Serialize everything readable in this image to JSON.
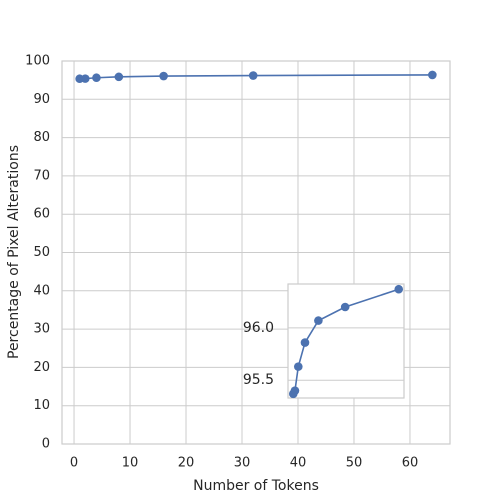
{
  "chart_data": {
    "type": "line",
    "xlabel": "Number of Tokens",
    "ylabel": "Percentage of Pixel Alterations",
    "x": [
      1,
      2,
      4,
      8,
      16,
      32,
      64
    ],
    "series": [
      {
        "color": "#4c72b0",
        "values": [
          95.37,
          95.4,
          95.63,
          95.86,
          96.07,
          96.2,
          96.37
        ]
      }
    ],
    "xlim": [
      -2.15,
      67.15
    ],
    "ylim": [
      0,
      100
    ],
    "xticks": [
      0,
      10,
      20,
      30,
      40,
      50,
      60
    ],
    "yticks": [
      0,
      10,
      20,
      30,
      40,
      50,
      60,
      70,
      80,
      90,
      100
    ],
    "grid": true,
    "inset": {
      "xlim": [
        -2.15,
        67.15
      ],
      "ylim": [
        95.33,
        96.42
      ],
      "yticks": [
        95.5,
        {
          "value": 96,
          "label": "96.0"
        }
      ]
    }
  }
}
